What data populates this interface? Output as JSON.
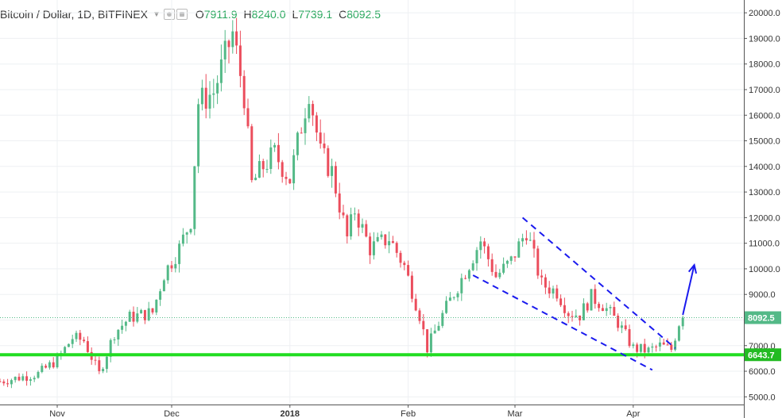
{
  "header": {
    "symbol": "Bitcoin / Dollar, 1D, BITFINEX",
    "open_label": "O",
    "open_value": "7911.9",
    "high_label": "H",
    "high_value": "8240.0",
    "low_label": "L",
    "low_value": "7739.1",
    "close_label": "C",
    "close_value": "8092.5"
  },
  "colors": {
    "up": "#53b987",
    "down": "#eb4d5c",
    "grid": "#eef0f3",
    "support": "#22dd22",
    "channel": "#1a1aee",
    "price_tag": "#53b987",
    "support_tag": "#22bb22"
  },
  "icons": [
    "eye-icon",
    "gear-icon",
    "dropdown-caret-icon"
  ],
  "chart_data": {
    "type": "candlestick",
    "title": "Bitcoin / Dollar, 1D, BITFINEX",
    "x_tick_labels": [
      "Nov",
      "Dec",
      "2018",
      "Feb",
      "Mar",
      "Apr"
    ],
    "x_tick_dates": [
      "2017-11-01",
      "2017-12-01",
      "2018-01-01",
      "2018-02-01",
      "2018-03-01",
      "2018-04-01"
    ],
    "y_tick_values": [
      5000,
      6000,
      7000,
      8000,
      9000,
      10000,
      11000,
      12000,
      13000,
      14000,
      15000,
      16000,
      17000,
      18000,
      19000,
      20000
    ],
    "y_tick_labels": [
      "5000.0",
      "6000.0",
      "7000.0",
      "8000.0",
      "9000.0",
      "10000.0",
      "11000.0",
      "12000.0",
      "13000.0",
      "14000.0",
      "15000.0",
      "16000.0",
      "17000.0",
      "18000.0",
      "19000.0",
      "20000.0"
    ],
    "ylim": [
      4700,
      20500
    ],
    "x_range": [
      "2017-10-17",
      "2018-04-30"
    ],
    "grid": true,
    "last_price": 8092.5,
    "last_price_label": "8092.5",
    "support_level": 6643.7,
    "support_label": "6643.7",
    "close_path": [
      [
        "2017-10-17",
        5600
      ],
      [
        "2017-10-22",
        5750
      ],
      [
        "2017-10-27",
        5900
      ],
      [
        "2017-11-01",
        6450
      ],
      [
        "2017-11-05",
        7300
      ],
      [
        "2017-11-08",
        7200
      ],
      [
        "2017-11-12",
        5900
      ],
      [
        "2017-11-16",
        7500
      ],
      [
        "2017-11-20",
        8100
      ],
      [
        "2017-11-26",
        8300
      ],
      [
        "2017-11-29",
        9800
      ],
      [
        "2017-12-03",
        10800
      ],
      [
        "2017-12-06",
        11900
      ],
      [
        "2017-12-08",
        16500
      ],
      [
        "2017-12-12",
        16900
      ],
      [
        "2017-12-17",
        19200
      ],
      [
        "2017-12-20",
        16800
      ],
      [
        "2017-12-22",
        13300
      ],
      [
        "2017-12-25",
        14000
      ],
      [
        "2017-12-28",
        14500
      ],
      [
        "2018-01-01",
        13500
      ],
      [
        "2018-01-06",
        17000
      ],
      [
        "2018-01-09",
        14500
      ],
      [
        "2018-01-12",
        13800
      ],
      [
        "2018-01-16",
        11200
      ],
      [
        "2018-01-18",
        12300
      ],
      [
        "2018-01-22",
        10800
      ],
      [
        "2018-01-27",
        11200
      ],
      [
        "2018-01-31",
        10100
      ],
      [
        "2018-02-04",
        8200
      ],
      [
        "2018-02-06",
        6900
      ],
      [
        "2018-02-10",
        8200
      ],
      [
        "2018-02-16",
        9900
      ],
      [
        "2018-02-20",
        11100
      ],
      [
        "2018-02-24",
        9700
      ],
      [
        "2018-02-28",
        10300
      ],
      [
        "2018-03-04",
        11500
      ],
      [
        "2018-03-08",
        9400
      ],
      [
        "2018-03-12",
        9100
      ],
      [
        "2018-03-15",
        8300
      ],
      [
        "2018-03-18",
        8200
      ],
      [
        "2018-03-21",
        8900
      ],
      [
        "2018-03-24",
        8600
      ],
      [
        "2018-03-28",
        7900
      ],
      [
        "2018-04-01",
        6900
      ],
      [
        "2018-04-05",
        6800
      ],
      [
        "2018-04-08",
        7000
      ],
      [
        "2018-04-11",
        6850
      ],
      [
        "2018-04-13",
        7900
      ],
      [
        "2018-04-14",
        8092.5
      ]
    ],
    "trend_lines": [
      {
        "style": "dashed",
        "from": [
          "2018-03-03",
          12000
        ],
        "to": [
          "2018-04-12",
          6900
        ]
      },
      {
        "style": "dashed",
        "from": [
          "2018-02-18",
          9750
        ],
        "to": [
          "2018-04-06",
          6050
        ]
      },
      {
        "style": "arrow",
        "from": [
          "2018-04-14",
          8200
        ],
        "to": [
          "2018-04-17",
          10150
        ]
      }
    ]
  }
}
